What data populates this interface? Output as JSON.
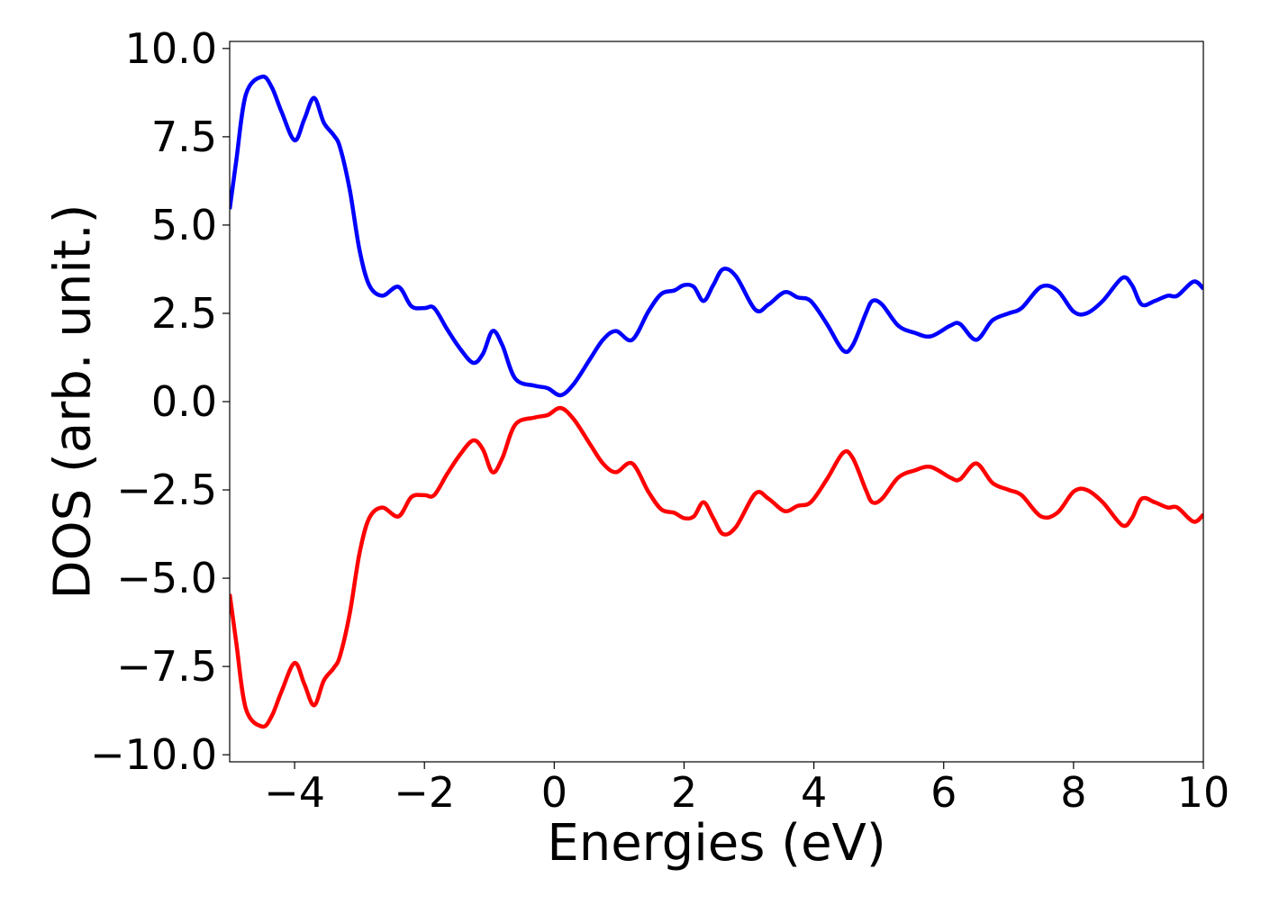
{
  "chart_data": {
    "type": "line",
    "title": "",
    "xlabel": "Energies (eV)",
    "ylabel": "DOS (arb. unit.)",
    "xlim": [
      -5,
      10
    ],
    "ylim": [
      -10.2,
      10.2
    ],
    "grid": false,
    "x_ticks": [
      -4,
      -2,
      0,
      2,
      4,
      6,
      8,
      10
    ],
    "x_tick_labels": [
      "−4",
      "−2",
      "0",
      "2",
      "4",
      "6",
      "8",
      "10"
    ],
    "y_ticks": [
      10,
      7.5,
      5,
      2.5,
      0,
      -2.5,
      -5,
      -7.5,
      -10
    ],
    "y_tick_labels": [
      "10.0",
      "7.5",
      "5.0",
      "2.5",
      "0.0",
      "−2.5",
      "−5.0",
      "−7.5",
      "−10.0"
    ],
    "series": [
      {
        "color": "#0000ff",
        "points": [
          [
            -5.0,
            5.45
          ],
          [
            -4.9,
            6.8
          ],
          [
            -4.75,
            8.7
          ],
          [
            -4.5,
            9.2
          ],
          [
            -4.35,
            8.9
          ],
          [
            -4.2,
            8.2
          ],
          [
            -4.0,
            7.4
          ],
          [
            -3.85,
            8.0
          ],
          [
            -3.7,
            8.6
          ],
          [
            -3.55,
            7.9
          ],
          [
            -3.4,
            7.55
          ],
          [
            -3.3,
            7.2
          ],
          [
            -3.15,
            6.0
          ],
          [
            -3.0,
            4.3
          ],
          [
            -2.85,
            3.3
          ],
          [
            -2.65,
            3.0
          ],
          [
            -2.4,
            3.25
          ],
          [
            -2.2,
            2.7
          ],
          [
            -2.0,
            2.65
          ],
          [
            -1.85,
            2.65
          ],
          [
            -1.65,
            2.05
          ],
          [
            -1.45,
            1.5
          ],
          [
            -1.25,
            1.1
          ],
          [
            -1.1,
            1.35
          ],
          [
            -0.95,
            2.0
          ],
          [
            -0.8,
            1.6
          ],
          [
            -0.6,
            0.65
          ],
          [
            -0.3,
            0.45
          ],
          [
            -0.1,
            0.38
          ],
          [
            0.1,
            0.18
          ],
          [
            0.3,
            0.5
          ],
          [
            0.55,
            1.2
          ],
          [
            0.75,
            1.75
          ],
          [
            0.95,
            2.0
          ],
          [
            1.2,
            1.75
          ],
          [
            1.45,
            2.55
          ],
          [
            1.65,
            3.05
          ],
          [
            1.85,
            3.15
          ],
          [
            2.0,
            3.3
          ],
          [
            2.15,
            3.25
          ],
          [
            2.3,
            2.85
          ],
          [
            2.45,
            3.3
          ],
          [
            2.6,
            3.75
          ],
          [
            2.8,
            3.55
          ],
          [
            3.1,
            2.6
          ],
          [
            3.3,
            2.75
          ],
          [
            3.55,
            3.1
          ],
          [
            3.75,
            2.95
          ],
          [
            3.95,
            2.85
          ],
          [
            4.2,
            2.2
          ],
          [
            4.45,
            1.45
          ],
          [
            4.6,
            1.6
          ],
          [
            4.8,
            2.5
          ],
          [
            4.9,
            2.85
          ],
          [
            5.05,
            2.75
          ],
          [
            5.3,
            2.15
          ],
          [
            5.55,
            1.95
          ],
          [
            5.8,
            1.85
          ],
          [
            6.1,
            2.15
          ],
          [
            6.25,
            2.2
          ],
          [
            6.5,
            1.75
          ],
          [
            6.75,
            2.3
          ],
          [
            7.0,
            2.5
          ],
          [
            7.2,
            2.65
          ],
          [
            7.5,
            3.25
          ],
          [
            7.75,
            3.15
          ],
          [
            8.0,
            2.55
          ],
          [
            8.2,
            2.5
          ],
          [
            8.45,
            2.85
          ],
          [
            8.75,
            3.5
          ],
          [
            8.9,
            3.3
          ],
          [
            9.05,
            2.75
          ],
          [
            9.25,
            2.85
          ],
          [
            9.45,
            3.0
          ],
          [
            9.6,
            3.0
          ],
          [
            9.85,
            3.4
          ],
          [
            10.0,
            3.2
          ]
        ]
      },
      {
        "color": "#ff0000",
        "points": [
          [
            -5.0,
            -5.45
          ],
          [
            -4.9,
            -6.8
          ],
          [
            -4.75,
            -8.7
          ],
          [
            -4.5,
            -9.2
          ],
          [
            -4.35,
            -8.9
          ],
          [
            -4.2,
            -8.2
          ],
          [
            -4.0,
            -7.4
          ],
          [
            -3.85,
            -8.0
          ],
          [
            -3.7,
            -8.6
          ],
          [
            -3.55,
            -7.9
          ],
          [
            -3.4,
            -7.55
          ],
          [
            -3.3,
            -7.2
          ],
          [
            -3.15,
            -6.0
          ],
          [
            -3.0,
            -4.3
          ],
          [
            -2.85,
            -3.3
          ],
          [
            -2.65,
            -3.0
          ],
          [
            -2.4,
            -3.25
          ],
          [
            -2.2,
            -2.7
          ],
          [
            -2.0,
            -2.65
          ],
          [
            -1.85,
            -2.65
          ],
          [
            -1.65,
            -2.05
          ],
          [
            -1.45,
            -1.5
          ],
          [
            -1.25,
            -1.1
          ],
          [
            -1.1,
            -1.35
          ],
          [
            -0.95,
            -2.0
          ],
          [
            -0.8,
            -1.6
          ],
          [
            -0.6,
            -0.65
          ],
          [
            -0.3,
            -0.45
          ],
          [
            -0.1,
            -0.38
          ],
          [
            0.1,
            -0.18
          ],
          [
            0.3,
            -0.5
          ],
          [
            0.55,
            -1.2
          ],
          [
            0.75,
            -1.75
          ],
          [
            0.95,
            -2.0
          ],
          [
            1.2,
            -1.75
          ],
          [
            1.45,
            -2.55
          ],
          [
            1.65,
            -3.05
          ],
          [
            1.85,
            -3.15
          ],
          [
            2.0,
            -3.3
          ],
          [
            2.15,
            -3.25
          ],
          [
            2.3,
            -2.85
          ],
          [
            2.45,
            -3.3
          ],
          [
            2.6,
            -3.75
          ],
          [
            2.8,
            -3.55
          ],
          [
            3.1,
            -2.6
          ],
          [
            3.3,
            -2.75
          ],
          [
            3.55,
            -3.1
          ],
          [
            3.75,
            -2.95
          ],
          [
            3.95,
            -2.85
          ],
          [
            4.2,
            -2.2
          ],
          [
            4.45,
            -1.45
          ],
          [
            4.6,
            -1.6
          ],
          [
            4.8,
            -2.5
          ],
          [
            4.9,
            -2.85
          ],
          [
            5.05,
            -2.75
          ],
          [
            5.3,
            -2.15
          ],
          [
            5.55,
            -1.95
          ],
          [
            5.8,
            -1.85
          ],
          [
            6.1,
            -2.15
          ],
          [
            6.25,
            -2.2
          ],
          [
            6.5,
            -1.75
          ],
          [
            6.75,
            -2.3
          ],
          [
            7.0,
            -2.5
          ],
          [
            7.2,
            -2.65
          ],
          [
            7.5,
            -3.25
          ],
          [
            7.75,
            -3.15
          ],
          [
            8.0,
            -2.55
          ],
          [
            8.2,
            -2.5
          ],
          [
            8.45,
            -2.85
          ],
          [
            8.75,
            -3.5
          ],
          [
            8.9,
            -3.3
          ],
          [
            9.05,
            -2.75
          ],
          [
            9.25,
            -2.85
          ],
          [
            9.45,
            -3.0
          ],
          [
            9.6,
            -3.0
          ],
          [
            9.85,
            -3.4
          ],
          [
            10.0,
            -3.2
          ]
        ]
      }
    ]
  }
}
